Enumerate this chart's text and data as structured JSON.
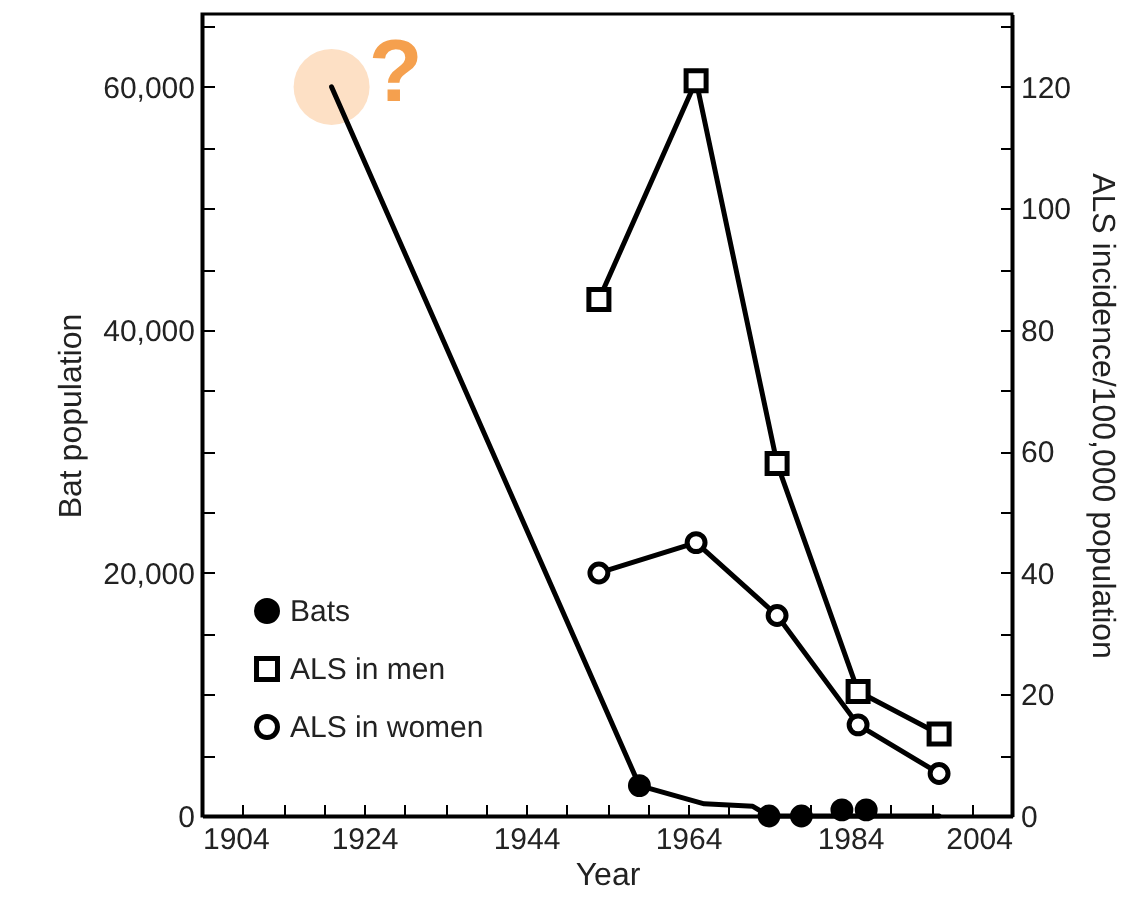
{
  "chart_data": {
    "type": "line",
    "xlabel": "Year",
    "ylabel": "Bat population",
    "y2label": "ALS incidence/100,000 population",
    "xlim": [
      1904,
      2004
    ],
    "xticks": [
      1904,
      {
        "value": 1909,
        "label": null
      },
      {
        "value": 1914,
        "label": null
      },
      {
        "value": 1919,
        "label": null
      },
      1924,
      {
        "value": 1929,
        "label": null
      },
      {
        "value": 1934,
        "label": null
      },
      {
        "value": 1939,
        "label": null
      },
      1944,
      {
        "value": 1949,
        "label": null
      },
      {
        "value": 1954,
        "label": null
      },
      {
        "value": 1959,
        "label": null
      },
      1964,
      {
        "value": 1969,
        "label": null
      },
      {
        "value": 1974,
        "label": null
      },
      {
        "value": 1979,
        "label": null
      },
      1984,
      {
        "value": 1989,
        "label": null
      },
      {
        "value": 1994,
        "label": null
      },
      {
        "value": 1999,
        "label": null
      },
      2004
    ],
    "ylim": [
      0,
      66000
    ],
    "yticks": [
      {
        "value": 0,
        "label": "0"
      },
      {
        "value": 5000,
        "label": null
      },
      {
        "value": 10000,
        "label": null
      },
      {
        "value": 15000,
        "label": null
      },
      {
        "value": 20000,
        "label": "20,000"
      },
      {
        "value": 25000,
        "label": null
      },
      {
        "value": 30000,
        "label": null
      },
      {
        "value": 35000,
        "label": null
      },
      {
        "value": 40000,
        "label": "40,000"
      },
      {
        "value": 45000,
        "label": null
      },
      {
        "value": 50000,
        "label": null
      },
      {
        "value": 55000,
        "label": null
      },
      {
        "value": 60000,
        "label": "60,000"
      },
      {
        "value": 65000,
        "label": null
      }
    ],
    "y2lim": [
      0,
      132
    ],
    "y2ticks": [
      0,
      {
        "value": 10,
        "label": null
      },
      20,
      {
        "value": 30,
        "label": null
      },
      40,
      {
        "value": 50,
        "label": null
      },
      60,
      {
        "value": 70,
        "label": null
      },
      80,
      {
        "value": 90,
        "label": null
      },
      100,
      {
        "value": 110,
        "label": null
      },
      120,
      {
        "value": 130,
        "label": null
      }
    ],
    "grid": false,
    "legend": "bottom left",
    "annotations": [
      "?"
    ],
    "series": [
      {
        "type": "line",
        "color": "#000000",
        "marker": "none",
        "x": [
          1920,
          1958,
          1966,
          1972,
          1974,
          1995
        ],
        "values": [
          60000,
          2500,
          1000,
          800,
          0,
          0
        ]
      },
      {
        "type": "scatter",
        "name": "Bats",
        "color": "#000000",
        "marker": "circle",
        "x": [
          1958,
          1974,
          1978,
          1983,
          1986
        ],
        "values": [
          2500,
          0,
          0,
          500,
          500
        ]
      },
      {
        "type": "line",
        "name": "ALS in men",
        "color": "#000000",
        "marker": "square",
        "axis": "y2",
        "x": [
          1953,
          1965,
          1975,
          1985,
          1995
        ],
        "values": [
          85,
          121,
          58,
          20.5,
          13.5
        ]
      },
      {
        "type": "line",
        "name": "ALS in women",
        "color": "#000000",
        "marker": "circle",
        "axis": "y2",
        "x": [
          1953,
          1965,
          1975,
          1985,
          1995
        ],
        "values": [
          40,
          45,
          33,
          15,
          7
        ]
      }
    ]
  }
}
